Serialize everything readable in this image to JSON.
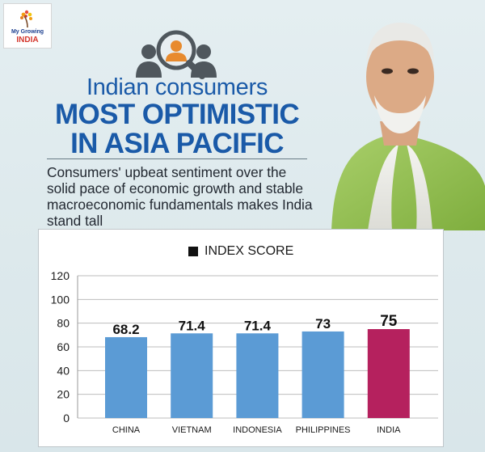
{
  "logo": {
    "line1": "My Growing",
    "line2": "INDIA"
  },
  "headline": {
    "line1": "Indian consumers",
    "line2": "MOST OPTIMISTIC",
    "line3": "IN ASIA PACIFIC"
  },
  "subtext": "Consumers' upbeat sentiment over the solid pace of economic growth and stable macroeconomic fundamentals makes India stand tall",
  "colors": {
    "headline": "#1a5aa8",
    "bar_default": "#5b9bd5",
    "bar_highlight": "#b5215e"
  },
  "icons": [
    "search-icon",
    "people-icon",
    "logo-flower-icon"
  ],
  "chart_data": {
    "type": "bar",
    "title": "",
    "categories": [
      "CHINA",
      "VIETNAM",
      "INDONESIA",
      "PHILIPPINES",
      "INDIA"
    ],
    "series": [
      {
        "name": "INDEX SCORE",
        "values": [
          68.2,
          71.4,
          71.4,
          73,
          75
        ]
      }
    ],
    "value_labels": [
      "68.2",
      "71.4",
      "71.4",
      "73",
      "75"
    ],
    "highlight_category": "INDIA",
    "ylim": [
      0,
      120
    ],
    "yticks": [
      0,
      20,
      40,
      60,
      80,
      100,
      120
    ],
    "grid": true,
    "legend": "top-center",
    "xlabel": "",
    "ylabel": ""
  }
}
